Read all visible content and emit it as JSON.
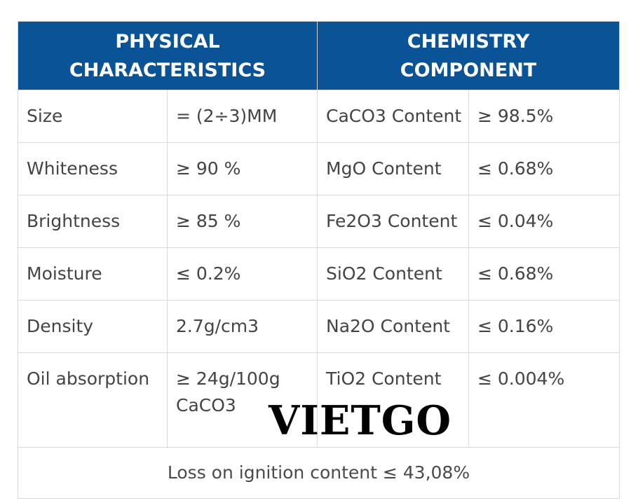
{
  "headers": {
    "physical_line1": "PHYSICAL",
    "physical_line2": "CHARACTERISTICS",
    "chemistry_line1": "CHEMISTRY",
    "chemistry_line2": "COMPONENT"
  },
  "rows": [
    {
      "property": "Size",
      "value": "= (2÷3)MM",
      "component": "CaCO3 Content",
      "amount": "≥ 98.5%"
    },
    {
      "property": "Whiteness",
      "value": "≥ 90 %",
      "component": "MgO Content",
      "amount": "≤ 0.68%"
    },
    {
      "property": "Brightness",
      "value": "≥ 85 %",
      "component": "Fe2O3 Content",
      "amount": "≤ 0.04%"
    },
    {
      "property": "Moisture",
      "value": "≤ 0.2%",
      "component": "SiO2 Content",
      "amount": "≤ 0.68%"
    },
    {
      "property": "Density",
      "value": "2.7g/cm3",
      "component": "Na2O Content",
      "amount": "≤ 0.16%"
    },
    {
      "property": "Oil absorption",
      "value": "≥ 24g/100g CaCO3",
      "component": "TiO2 Content",
      "amount": "≤ 0.004%"
    }
  ],
  "footer": "Loss on ignition content ≤ 43,08%",
  "watermark": "VIETGO",
  "colors": {
    "header_bg": "#0a5396",
    "header_text": "#ffffff",
    "border": "#d9d9d9",
    "body_text": "#444444"
  }
}
